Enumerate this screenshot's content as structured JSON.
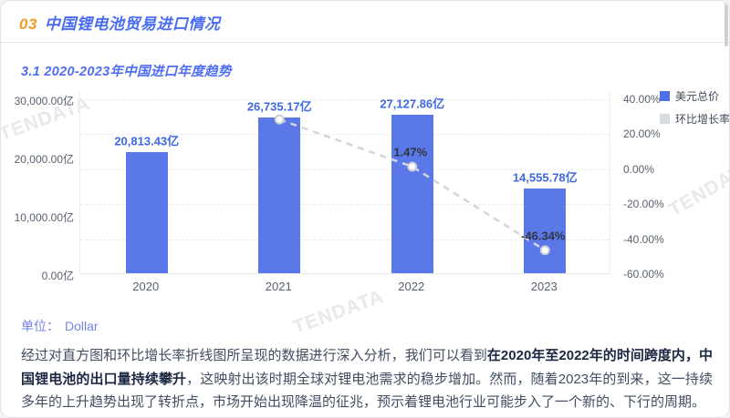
{
  "page": {
    "section_number": "03",
    "section_title": "中国锂电池贸易进口情况",
    "subsection_title": "3.1 2020-2023年中国进口年度趋势",
    "watermark": "TENDATA"
  },
  "unit": {
    "label": "单位：",
    "value": "Dollar"
  },
  "chart_data": {
    "type": "bar",
    "title": "3.1 2020-2023年中国进口年度趋势",
    "categories": [
      "2020",
      "2021",
      "2022",
      "2023"
    ],
    "series": [
      {
        "name": "美元总价",
        "type": "bar",
        "unit": "亿",
        "values": [
          20813.43,
          26735.17,
          27127.86,
          14555.78
        ],
        "labels": [
          "20,813.43亿",
          "26,735.17亿",
          "27,127.86亿",
          "14,555.78亿"
        ],
        "color": "#5b78e8"
      },
      {
        "name": "环比增长率",
        "type": "line",
        "unit": "%",
        "values": [
          null,
          28.45,
          1.47,
          -46.34
        ],
        "labels": [
          null,
          null,
          "1.47%",
          "-46.34%"
        ],
        "color": "#d2d5dc"
      }
    ],
    "left_axis": {
      "ticks": [
        "30,000.00亿",
        "20,000.00亿",
        "10,000.00亿",
        "0.00亿"
      ],
      "min": 0,
      "max": 30000
    },
    "right_axis": {
      "ticks": [
        "40.00%",
        "20.00%",
        "0.00%",
        "-20.00%",
        "-40.00%",
        "-60.00%"
      ],
      "min": -60,
      "max": 40
    },
    "legend": [
      {
        "label": "美元总价",
        "color": "#4d6fe8"
      },
      {
        "label": "环比增长率",
        "color": "#d8dbe0"
      }
    ],
    "grid": "dashed-horizontal",
    "legend_position": "top-right"
  },
  "analysis": {
    "part1": "经过对直方图和环比增长率折线图所呈现的数据进行深入分析，我们可以看到",
    "bold": "在2020年至2022年的时间跨度内，中国锂电池的出口量持续攀升",
    "part2": "，这映射出该时期全球对锂电池需求的稳步增加。然而，随着2023年的到来，这一持续多年的上升趋势出现了转折点，市场开始出现降温的征兆，预示着锂电池行业可能步入了一个新的、下行的周期。"
  }
}
